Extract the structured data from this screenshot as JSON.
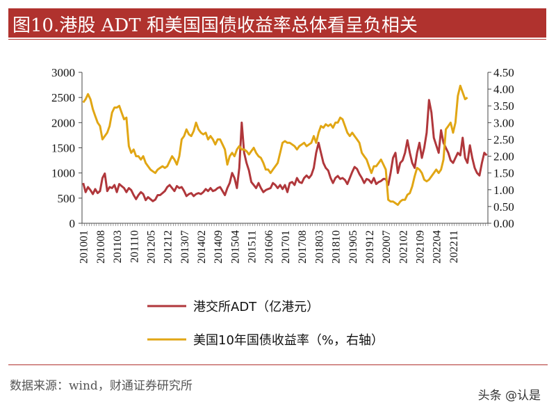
{
  "title": "图10.港股 ADT 和美国国债收益率总体看呈负相关",
  "source": "数据来源：wind，财通证券研究所",
  "watermark": "头条 @认是",
  "colors": {
    "title_bg": "#b0322e",
    "adt": "#b0373b",
    "yield": "#e1a614"
  },
  "chart_data": {
    "type": "line",
    "xlabel": "",
    "ylabel_left": "",
    "ylabel_right": "",
    "grid": false,
    "legend_position": "bottom",
    "x_tick_labels": [
      "201001",
      "201008",
      "201103",
      "201110",
      "201205",
      "201212",
      "201307",
      "201402",
      "201409",
      "201504",
      "201511",
      "201606",
      "201701",
      "201708",
      "201803",
      "201810",
      "201905",
      "201912",
      "202007",
      "202102",
      "202109",
      "202204",
      "202211"
    ],
    "left_axis": {
      "min": 0,
      "max": 3000,
      "ticks": [
        "0",
        "500",
        "1000",
        "1500",
        "2000",
        "2500",
        "3000"
      ]
    },
    "right_axis": {
      "min": 0,
      "max": 4.5,
      "ticks": [
        "0.00",
        "0.50",
        "1.00",
        "1.50",
        "2.00",
        "2.50",
        "3.00",
        "3.50",
        "4.00",
        "4.50"
      ]
    },
    "x_start": "2010-01",
    "series": [
      {
        "name": "港交所ADT（亿港元）",
        "axis": "left",
        "values": [
          800,
          620,
          720,
          660,
          580,
          680,
          600,
          640,
          900,
          990,
          640,
          720,
          700,
          760,
          620,
          780,
          740,
          700,
          620,
          700,
          660,
          560,
          480,
          560,
          620,
          580,
          460,
          520,
          480,
          440,
          470,
          560,
          560,
          600,
          640,
          720,
          760,
          700,
          640,
          740,
          700,
          720,
          640,
          540,
          580,
          600,
          540,
          580,
          600,
          580,
          620,
          680,
          640,
          700,
          640,
          660,
          700,
          720,
          640,
          560,
          700,
          800,
          1000,
          900,
          700,
          1100,
          2000,
          1400,
          1200,
          1050,
          820,
          760,
          700,
          800,
          700,
          620,
          660,
          680,
          700,
          800,
          760,
          700,
          760,
          680,
          760,
          620,
          800,
          820,
          760,
          900,
          820,
          800,
          900,
          950,
          900,
          960,
          1100,
          1400,
          1600,
          1400,
          1200,
          1100,
          1050,
          900,
          800,
          900,
          940,
          880,
          900,
          860,
          780,
          900,
          1020,
          1120,
          1080,
          980,
          900,
          800,
          880,
          860,
          800,
          900,
          780,
          820,
          840,
          880,
          880,
          760,
          1000,
          1300,
          1400,
          1000,
          1200,
          1250,
          1400,
          1650,
          1400,
          1200,
          1100,
          1400,
          1600,
          1300,
          1500,
          1800,
          2450,
          2200,
          1700,
          1550,
          1400,
          1850,
          1600,
          1500,
          1400,
          1250,
          1200,
          1300,
          1400,
          1350,
          1700,
          1300,
          1200,
          1550,
          1300,
          1100,
          1000,
          950,
          1200,
          1400,
          1350
        ]
      },
      {
        "name": "美国10年国债收益率（%，右轴）",
        "axis": "right",
        "values": [
          3.6,
          3.7,
          3.85,
          3.7,
          3.4,
          3.2,
          3.0,
          2.9,
          2.5,
          2.6,
          2.7,
          2.9,
          3.3,
          3.45,
          3.45,
          3.5,
          3.3,
          3.1,
          3.15,
          2.3,
          2.1,
          2.2,
          2.0,
          2.0,
          1.9,
          2.0,
          1.8,
          1.7,
          1.6,
          1.55,
          1.5,
          1.6,
          1.65,
          1.7,
          1.65,
          1.7,
          1.85,
          2.0,
          1.9,
          1.75,
          2.0,
          2.5,
          2.6,
          2.8,
          2.65,
          2.6,
          2.75,
          3.0,
          2.8,
          2.7,
          2.65,
          2.7,
          2.5,
          2.6,
          2.5,
          2.35,
          2.5,
          2.5,
          2.35,
          2.2,
          1.75,
          2.0,
          2.1,
          2.0,
          2.2,
          2.3,
          2.2,
          2.2,
          2.15,
          2.05,
          2.15,
          2.25,
          2.1,
          2.0,
          1.95,
          1.8,
          1.6,
          1.6,
          1.5,
          1.6,
          1.7,
          1.8,
          2.1,
          2.4,
          2.45,
          2.4,
          2.4,
          2.35,
          2.3,
          2.2,
          2.3,
          2.35,
          2.4,
          2.3,
          2.35,
          2.4,
          2.6,
          2.4,
          2.7,
          2.9,
          2.85,
          2.95,
          2.9,
          2.95,
          2.85,
          3.0,
          3.0,
          3.15,
          3.1,
          2.9,
          2.7,
          2.6,
          2.7,
          2.6,
          2.5,
          2.4,
          2.1,
          2.0,
          1.9,
          1.7,
          1.5,
          1.7,
          1.7,
          1.8,
          1.9,
          1.75,
          1.6,
          0.7,
          0.65,
          0.65,
          0.6,
          0.55,
          0.65,
          0.7,
          0.7,
          0.85,
          0.9,
          1.1,
          1.4,
          1.65,
          1.6,
          1.5,
          1.3,
          1.25,
          1.3,
          1.4,
          1.5,
          1.6,
          1.5,
          1.6,
          1.9,
          2.8,
          2.9,
          3.0,
          2.7,
          3.0,
          3.8,
          4.1,
          3.9,
          3.7,
          3.75
        ]
      }
    ]
  }
}
